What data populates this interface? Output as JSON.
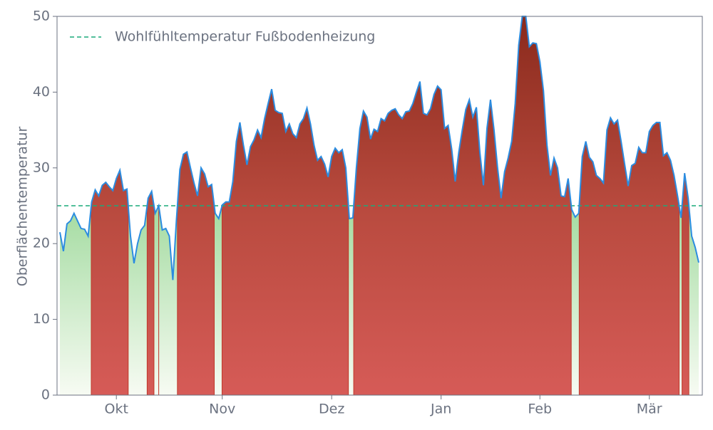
{
  "chart_data": {
    "type": "area_threshold",
    "ylabel": "Oberflächentemperatur",
    "categories": [
      null,
      null,
      null,
      null,
      null,
      null,
      null,
      null,
      null,
      null,
      null,
      null,
      null,
      null,
      null,
      null,
      "Okt",
      null,
      null,
      null,
      null,
      null,
      null,
      null,
      null,
      null,
      null,
      null,
      null,
      null,
      null,
      null,
      null,
      null,
      null,
      null,
      null,
      null,
      null,
      null,
      null,
      null,
      null,
      null,
      null,
      null,
      "Nov",
      null,
      null,
      null,
      null,
      null,
      null,
      null,
      null,
      null,
      null,
      null,
      null,
      null,
      null,
      null,
      null,
      null,
      null,
      null,
      null,
      null,
      null,
      null,
      null,
      null,
      null,
      null,
      null,
      null,
      null,
      "Dez",
      null,
      null,
      null,
      null,
      null,
      null,
      null,
      null,
      null,
      null,
      null,
      null,
      null,
      null,
      null,
      null,
      null,
      null,
      null,
      null,
      null,
      null,
      null,
      null,
      null,
      null,
      null,
      null,
      null,
      null,
      "Jan",
      null,
      null,
      null,
      null,
      null,
      null,
      null,
      null,
      null,
      null,
      null,
      null,
      null,
      null,
      null,
      null,
      null,
      null,
      null,
      null,
      null,
      null,
      null,
      null,
      null,
      null,
      null,
      "Feb",
      null,
      null,
      null,
      null,
      null,
      null,
      null,
      null,
      null,
      null,
      null,
      null,
      null,
      null,
      null,
      null,
      null,
      null,
      null,
      null,
      null,
      null,
      null,
      null,
      null,
      null,
      null,
      null,
      null,
      null,
      "Mär",
      null,
      null,
      null,
      null,
      null,
      null,
      null,
      null,
      null,
      null,
      null,
      null,
      null,
      null
    ],
    "series": [
      {
        "color": "#2b8ce0",
        "values": [
          21.5,
          19,
          22.6,
          23,
          24,
          23,
          22,
          21.9,
          21,
          25.5,
          27.1,
          26.3,
          27.7,
          28.1,
          27.5,
          27,
          28.6,
          29.7,
          27,
          27.2,
          21,
          17.4,
          20,
          21.8,
          22.4,
          26,
          26.9,
          24,
          25,
          21.8,
          22,
          21,
          15.2,
          23,
          29.8,
          31.8,
          32.1,
          30,
          28,
          26.3,
          30,
          29.2,
          27.5,
          27.8,
          24,
          23.3,
          25.1,
          25.5,
          25.5,
          28.2,
          33.5,
          36,
          33,
          30.4,
          32.8,
          33.7,
          35,
          34,
          36.5,
          38.5,
          40.4,
          37.6,
          37.3,
          37.2,
          34.8,
          35.8,
          34.5,
          34,
          35.8,
          36.5,
          37.9,
          35.8,
          33,
          31,
          31.5,
          30.5,
          28.8,
          31.5,
          32.6,
          32,
          32.4,
          30,
          23.3,
          23.4,
          30,
          35.2,
          37.5,
          36.7,
          33.8,
          35.1,
          34.8,
          36.5,
          36.2,
          37.2,
          37.6,
          37.8,
          37,
          36.5,
          37.4,
          37.5,
          38.5,
          40,
          41.4,
          37.2,
          37,
          37.8,
          39.7,
          40.8,
          40.3,
          35.2,
          35.6,
          32.5,
          28.2,
          32,
          35,
          37.7,
          39,
          36.7,
          38,
          32,
          27.7,
          35.2,
          39,
          35,
          30,
          26,
          29.5,
          31.3,
          33.5,
          38.5,
          46.2,
          50,
          50,
          46,
          46.5,
          46.4,
          44,
          40.2,
          33,
          29,
          31.3,
          30,
          26.3,
          26.2,
          28.6,
          24.5,
          23.5,
          24,
          31.5,
          33.5,
          31.4,
          30.8,
          29,
          28.6,
          28,
          35,
          36.6,
          35.8,
          36.3,
          33.5,
          30.5,
          27.6,
          30.3,
          30.6,
          32.7,
          32,
          32,
          34.8,
          35.6,
          36,
          36,
          31.6,
          32,
          31,
          29,
          26.3,
          23.4,
          29.3,
          26,
          21,
          19.5,
          17.5
        ]
      }
    ],
    "reference_line": {
      "value": 25,
      "label": "Wohlfühltemperatur Fußbodenheizung",
      "color": "#1aaa7a"
    },
    "ylim": [
      0,
      50
    ],
    "yticks": [
      0,
      10,
      20,
      30,
      40,
      50
    ],
    "legend": "upper left"
  }
}
